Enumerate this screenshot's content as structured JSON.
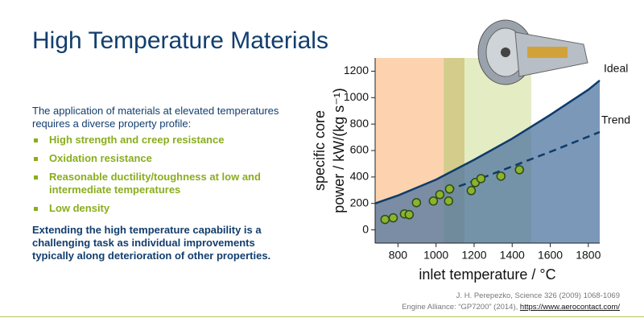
{
  "title": "High Temperature Materials",
  "intro": "The application of materials at elevated temperatures requires a diverse property profile:",
  "bullets": [
    "High strength and creep resistance",
    "Oxidation resistance",
    "Reasonable ductility/toughness at low and intermediate temperatures",
    "Low density"
  ],
  "conclusion": "Extending the high temperature capability is a challenging task as individual improvements typically along deterioration of other properties.",
  "references": {
    "line1": "J. H. Perepezko, Science 326 (2009) 1068-1069",
    "line2": "Engine Alliance: “GP7200” (2014),",
    "link": "https://www.aerocontact.com/"
  },
  "chart_data": {
    "type": "line",
    "xlabel": "inlet temperature / °C",
    "ylabel": [
      "specific core",
      "power / kW/(kg s⁻¹)"
    ],
    "xlim": [
      680,
      1860
    ],
    "ylim": [
      -100,
      1300
    ],
    "xticks": [
      800,
      1000,
      1200,
      1400,
      1600,
      1800
    ],
    "yticks": [
      0,
      200,
      400,
      600,
      800,
      1000,
      1200
    ],
    "bands": [
      {
        "range": [
          680,
          1040
        ],
        "color": "#fcd3ae"
      },
      {
        "range": [
          1040,
          1150
        ],
        "color": "#d4cc8a"
      },
      {
        "range": [
          1150,
          1500
        ],
        "color": "#e4ecc4"
      }
    ],
    "area_color": "#4f76a0",
    "series": [
      {
        "name": "Ideal",
        "color": "#0d3b6b",
        "dashed": false,
        "x": [
          680,
          800,
          1000,
          1200,
          1400,
          1600,
          1800,
          1860
        ],
        "values": [
          200,
          260,
          380,
          530,
          690,
          870,
          1060,
          1130
        ]
      },
      {
        "name": "Trend",
        "color": "#0d3b6b",
        "dashed": true,
        "x": [
          1000,
          1200,
          1400,
          1600,
          1860
        ],
        "values": [
          270,
          370,
          480,
          590,
          740
        ]
      }
    ],
    "scatter": {
      "color": "#8cb32c",
      "x": [
        732,
        775,
        834,
        859,
        897,
        986,
        1020,
        1066,
        1071,
        1185,
        1206,
        1236,
        1341,
        1438
      ],
      "values": [
        79,
        91,
        121,
        115,
        206,
        218,
        267,
        218,
        309,
        297,
        358,
        388,
        406,
        455
      ]
    }
  }
}
